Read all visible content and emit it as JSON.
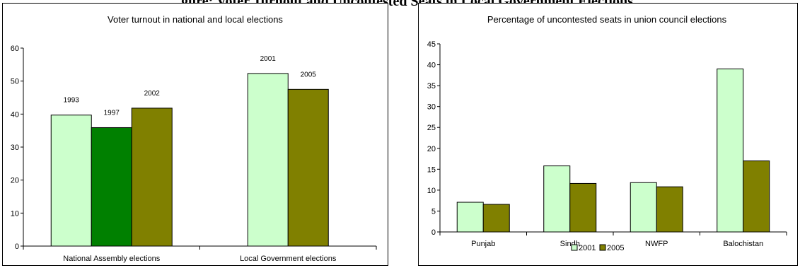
{
  "page_heading": "…gure: Voter Turnout and Uncontested Seats in Local Government Elections",
  "colors": {
    "light_green": "#ccffcc",
    "dark_green": "#008000",
    "olive": "#808000",
    "axis": "#000000"
  },
  "chart_data": [
    {
      "type": "bar",
      "title": "Voter turnout in national and local elections",
      "xlabel": "",
      "ylabel": "",
      "ylim": [
        0,
        60
      ],
      "yticks": [
        "0",
        "10",
        "20",
        "30",
        "40",
        "50",
        "60"
      ],
      "grid": false,
      "legend": "none",
      "groups": [
        {
          "category": "National Assembly elections",
          "bars": [
            {
              "label": "1993",
              "value": 39.7,
              "color": "#ccffcc"
            },
            {
              "label": "1997",
              "value": 35.9,
              "color": "#008000"
            },
            {
              "label": "2002",
              "value": 41.8,
              "color": "#808000"
            }
          ]
        },
        {
          "category": "Local Government elections",
          "bars": [
            {
              "label": "2001",
              "value": 52.3,
              "color": "#ccffcc"
            },
            {
              "label": "2005",
              "value": 47.5,
              "color": "#808000"
            }
          ]
        }
      ]
    },
    {
      "type": "bar",
      "title": "Percentage of uncontested seats in union council elections",
      "xlabel": "",
      "ylabel": "",
      "ylim": [
        0,
        45
      ],
      "yticks": [
        "0",
        "5",
        "10",
        "15",
        "20",
        "25",
        "30",
        "35",
        "40",
        "45"
      ],
      "grid": false,
      "legend": "bottom",
      "categories": [
        "Punjab",
        "Sindh",
        "NWFP",
        "Balochistan"
      ],
      "series": [
        {
          "name": "2001",
          "color": "#ccffcc",
          "values": [
            7.1,
            15.8,
            11.8,
            39.0
          ]
        },
        {
          "name": "2005",
          "color": "#808000",
          "values": [
            6.6,
            11.6,
            10.8,
            17.0
          ]
        }
      ]
    }
  ]
}
